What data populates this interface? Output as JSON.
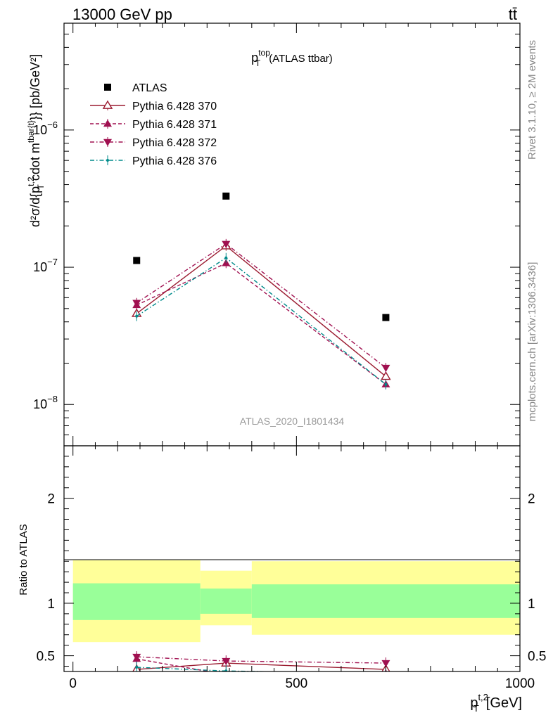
{
  "header": {
    "left": "13000 GeV pp",
    "right": "tt̄"
  },
  "side_labels": {
    "rivet": "Rivet 3.1.10, ≥ 2M events",
    "mcplots": "mcplots.cern.ch [arXiv:1306.3436]"
  },
  "chart_data": [
    {
      "type": "scatter",
      "title": "p_T^top (ATLAS ttbar)",
      "watermark": "ATLAS_2020_I1801434",
      "ylabel": "d²σ/d{p_T^t,2 cdot m^tbar{t}} [pb/GeV²]",
      "xlim": [
        -20,
        1000
      ],
      "ylim": [
        5e-09,
        6e-06
      ],
      "y_scale": "log",
      "y_tick_labels": [
        "10^-8",
        "10^-7",
        "10^-6"
      ],
      "legend_position": "top-left",
      "x_bin_edges": [
        0,
        285,
        400,
        1000
      ],
      "x": [
        142.5,
        342.5,
        700
      ],
      "series": [
        {
          "name": "ATLAS",
          "color": "#000000",
          "marker": "square",
          "values": [
            1.12e-07,
            3.3e-07,
            4.3e-08
          ]
        },
        {
          "name": "Pythia 6.428 370",
          "color": "#9b1b30",
          "marker": "open-triangle-up",
          "line": "solid",
          "values": [
            4.6e-08,
            1.43e-07,
            1.6e-08
          ]
        },
        {
          "name": "Pythia 6.428 371",
          "color": "#a01050",
          "marker": "triangle-up",
          "line": "dashed",
          "values": [
            5.3e-08,
            1.07e-07,
            1.4e-08
          ]
        },
        {
          "name": "Pythia 6.428 372",
          "color": "#a01050",
          "marker": "triangle-down",
          "line": "dashdot",
          "values": [
            5.5e-08,
            1.48e-07,
            1.85e-08
          ]
        },
        {
          "name": "Pythia 6.428 376",
          "color": "#008b8b",
          "marker": "dot",
          "line": "dashdot",
          "values": [
            4.4e-08,
            1.17e-07,
            1.4e-08
          ]
        }
      ]
    },
    {
      "type": "scatter",
      "ylabel": "Ratio to ATLAS",
      "xlabel": "p_T^t,2 [GeV]",
      "xlim": [
        -20,
        1000
      ],
      "ylim": [
        0.35,
        2.5
      ],
      "x_ticks": [
        0,
        500,
        1000
      ],
      "y_ticks": [
        0.5,
        1,
        2
      ],
      "reference_line": 1,
      "x_bin_edges": [
        0,
        285,
        400,
        1000
      ],
      "band_inner": [
        [
          0.84,
          1.19
        ],
        [
          0.9,
          1.14
        ],
        [
          0.86,
          1.18
        ]
      ],
      "band_outer": [
        [
          0.63,
          1.41
        ],
        [
          0.79,
          1.31
        ],
        [
          0.7,
          1.4
        ]
      ],
      "band_inner_color": "#99ff99",
      "band_outer_color": "#ffff99",
      "x": [
        142.5,
        342.5,
        700
      ],
      "series": [
        {
          "name": "Pythia 6.428 370",
          "color": "#9b1b30",
          "marker": "open-triangle-up",
          "line": "solid",
          "values": [
            0.37,
            0.43,
            0.37
          ]
        },
        {
          "name": "Pythia 6.428 371",
          "color": "#a01050",
          "marker": "triangle-up",
          "line": "dashed",
          "values": [
            0.47,
            0.32,
            0.33
          ]
        },
        {
          "name": "Pythia 6.428 372",
          "color": "#a01050",
          "marker": "triangle-down",
          "line": "dashdot",
          "values": [
            0.49,
            0.45,
            0.43
          ]
        },
        {
          "name": "Pythia 6.428 376",
          "color": "#008b8b",
          "marker": "dot",
          "line": "dashdot",
          "values": [
            0.39,
            0.355,
            0.33
          ]
        }
      ]
    }
  ]
}
